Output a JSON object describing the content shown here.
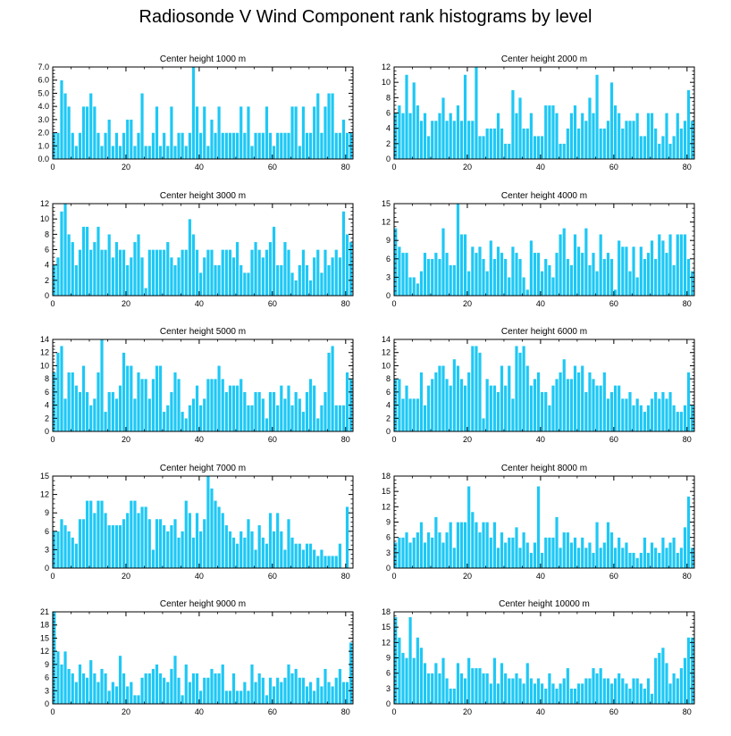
{
  "figure": {
    "title": "Radiosonde V Wind Component rank histograms by level",
    "bar_color": "#1ec8f5",
    "axis_color": "#000000"
  },
  "chart_data": [
    {
      "type": "bar",
      "title": "Center height 1000 m",
      "xlim": [
        0,
        82
      ],
      "xticks": [
        0,
        20,
        40,
        60,
        80
      ],
      "ylim": [
        0,
        7
      ],
      "yticks": [
        0,
        1,
        2,
        3,
        4,
        5,
        6,
        7
      ],
      "ytick_labels": [
        "0.0",
        "1.0",
        "2.0",
        "3.0",
        "4.0",
        "5.0",
        "6.0",
        "7.0"
      ],
      "values": [
        2,
        2,
        6,
        5,
        4,
        2,
        1,
        2,
        4,
        4,
        5,
        4,
        2,
        1,
        2,
        3,
        1,
        2,
        1,
        2,
        3,
        3,
        1,
        2,
        5,
        1,
        1,
        2,
        4,
        1,
        2,
        1,
        4,
        1,
        2,
        2,
        1,
        2,
        7,
        4,
        2,
        4,
        1,
        3,
        2,
        4,
        2,
        2,
        2,
        2,
        2,
        4,
        2,
        4,
        1,
        2,
        2,
        2,
        4,
        2,
        1,
        2,
        2,
        2,
        2,
        4,
        4,
        1,
        4,
        2,
        2,
        4,
        5,
        2,
        4,
        5,
        5,
        2,
        2,
        3,
        2,
        2
      ]
    },
    {
      "type": "bar",
      "title": "Center height 2000 m",
      "xlim": [
        0,
        82
      ],
      "xticks": [
        0,
        20,
        40,
        60,
        80
      ],
      "ylim": [
        0,
        12
      ],
      "yticks": [
        0,
        2,
        4,
        6,
        8,
        10,
        12
      ],
      "ytick_labels": [
        "0",
        "2",
        "4",
        "6",
        "8",
        "10",
        "12"
      ],
      "values": [
        6,
        7,
        6,
        11,
        6,
        10,
        7,
        5,
        6,
        3,
        5,
        5,
        6,
        8,
        5,
        6,
        5,
        7,
        5,
        11,
        5,
        5,
        12,
        3,
        3,
        4,
        4,
        4,
        6,
        4,
        2,
        2,
        9,
        6,
        8,
        4,
        4,
        6,
        3,
        3,
        3,
        7,
        7,
        7,
        6,
        2,
        2,
        4,
        6,
        7,
        4,
        6,
        5,
        8,
        6,
        11,
        4,
        4,
        5,
        10,
        7,
        6,
        4,
        5,
        5,
        5,
        6,
        3,
        3,
        6,
        6,
        4,
        2,
        3,
        6,
        2,
        3,
        6,
        4,
        5,
        9,
        5
      ]
    },
    {
      "type": "bar",
      "title": "Center height 3000 m",
      "xlim": [
        0,
        82
      ],
      "xticks": [
        0,
        20,
        40,
        60,
        80
      ],
      "ylim": [
        0,
        12
      ],
      "yticks": [
        0,
        2,
        4,
        6,
        8,
        10,
        12
      ],
      "ytick_labels": [
        "0",
        "2",
        "4",
        "6",
        "8",
        "10",
        "12"
      ],
      "values": [
        4,
        5,
        11,
        12,
        8,
        7,
        4,
        6,
        9,
        9,
        6,
        7,
        9,
        6,
        6,
        8,
        5,
        7,
        6,
        6,
        4,
        5,
        7,
        8,
        5,
        1,
        6,
        6,
        6,
        6,
        6,
        7,
        5,
        4,
        5,
        6,
        6,
        10,
        8,
        6,
        3,
        5,
        6,
        6,
        4,
        4,
        6,
        6,
        6,
        5,
        7,
        4,
        3,
        3,
        6,
        7,
        6,
        5,
        6,
        7,
        9,
        4,
        4,
        7,
        6,
        3,
        2,
        4,
        6,
        4,
        2,
        5,
        6,
        3,
        6,
        4,
        5,
        6,
        5,
        11,
        8,
        7
      ]
    },
    {
      "type": "bar",
      "title": "Center height 4000 m",
      "xlim": [
        0,
        82
      ],
      "xticks": [
        0,
        20,
        40,
        60,
        80
      ],
      "ylim": [
        0,
        15
      ],
      "yticks": [
        0,
        3,
        6,
        9,
        12,
        15
      ],
      "ytick_labels": [
        "0",
        "3",
        "6",
        "9",
        "12",
        "15"
      ],
      "values": [
        11,
        8,
        7,
        7,
        3,
        3,
        2,
        4,
        7,
        6,
        6,
        7,
        6,
        11,
        7,
        5,
        5,
        15,
        10,
        10,
        4,
        8,
        7,
        8,
        6,
        4,
        9,
        6,
        8,
        7,
        6,
        3,
        8,
        7,
        6,
        3,
        1,
        9,
        7,
        7,
        4,
        6,
        5,
        3,
        7,
        10,
        11,
        6,
        5,
        10,
        8,
        7,
        11,
        5,
        7,
        4,
        10,
        6,
        7,
        6,
        1,
        9,
        8,
        8,
        4,
        8,
        3,
        8,
        6,
        7,
        9,
        6,
        10,
        9,
        7,
        10,
        5,
        10,
        10,
        10,
        6,
        4
      ]
    },
    {
      "type": "bar",
      "title": "Center height 5000 m",
      "xlim": [
        0,
        82
      ],
      "xticks": [
        0,
        20,
        40,
        60,
        80
      ],
      "ylim": [
        0,
        14
      ],
      "yticks": [
        0,
        2,
        4,
        6,
        8,
        10,
        12,
        14
      ],
      "ytick_labels": [
        "0",
        "2",
        "4",
        "6",
        "8",
        "10",
        "12",
        "14"
      ],
      "values": [
        9,
        12,
        13,
        5,
        9,
        9,
        7,
        6,
        10,
        6,
        4,
        5,
        9,
        14,
        3,
        6,
        6,
        5,
        7,
        12,
        10,
        10,
        5,
        9,
        8,
        8,
        5,
        8,
        10,
        10,
        3,
        4,
        6,
        9,
        8,
        3,
        2,
        4,
        5,
        7,
        4,
        5,
        8,
        8,
        8,
        10,
        8,
        6,
        7,
        7,
        7,
        8,
        6,
        4,
        4,
        6,
        6,
        5,
        2,
        6,
        6,
        4,
        7,
        5,
        7,
        4,
        6,
        5,
        3,
        6,
        8,
        7,
        2,
        4,
        6,
        12,
        13,
        4,
        4,
        4,
        9,
        8
      ]
    },
    {
      "type": "bar",
      "title": "Center height 6000 m",
      "xlim": [
        0,
        82
      ],
      "xticks": [
        0,
        20,
        40,
        60,
        80
      ],
      "ylim": [
        0,
        14
      ],
      "yticks": [
        0,
        2,
        4,
        6,
        8,
        10,
        12,
        14
      ],
      "ytick_labels": [
        "0",
        "2",
        "4",
        "6",
        "8",
        "10",
        "12",
        "14"
      ],
      "values": [
        8,
        8,
        5,
        7,
        5,
        5,
        5,
        9,
        4,
        7,
        8,
        9,
        10,
        10,
        8,
        7,
        11,
        10,
        8,
        7,
        9,
        13,
        13,
        12,
        2,
        8,
        7,
        7,
        6,
        10,
        7,
        10,
        5,
        13,
        12,
        13,
        10,
        7,
        8,
        9,
        6,
        6,
        4,
        7,
        8,
        9,
        11,
        8,
        8,
        10,
        9,
        10,
        6,
        9,
        8,
        7,
        7,
        9,
        5,
        6,
        7,
        7,
        5,
        5,
        6,
        4,
        5,
        4,
        3,
        4,
        5,
        6,
        5,
        6,
        5,
        6,
        4,
        3,
        3,
        4,
        9,
        4
      ]
    },
    {
      "type": "bar",
      "title": "Center height 7000 m",
      "xlim": [
        0,
        82
      ],
      "xticks": [
        0,
        20,
        40,
        60,
        80
      ],
      "ylim": [
        0,
        15
      ],
      "yticks": [
        0,
        3,
        6,
        9,
        12,
        15
      ],
      "ytick_labels": [
        "0",
        "3",
        "6",
        "9",
        "12",
        "15"
      ],
      "values": [
        6,
        6,
        8,
        7,
        6,
        5,
        4,
        8,
        8,
        11,
        11,
        9,
        11,
        11,
        9,
        7,
        7,
        7,
        7,
        8,
        9,
        11,
        11,
        9,
        10,
        10,
        8,
        3,
        8,
        8,
        7,
        6,
        7,
        8,
        5,
        6,
        11,
        9,
        5,
        9,
        6,
        8,
        15,
        13,
        11,
        10,
        9,
        7,
        6,
        5,
        4,
        6,
        5,
        8,
        6,
        3,
        7,
        5,
        4,
        9,
        6,
        9,
        6,
        3,
        8,
        5,
        4,
        4,
        3,
        4,
        4,
        3,
        2,
        3,
        2,
        2,
        2,
        2,
        4,
        0,
        10,
        0
      ]
    },
    {
      "type": "bar",
      "title": "Center height 8000 m",
      "xlim": [
        0,
        82
      ],
      "xticks": [
        0,
        20,
        40,
        60,
        80
      ],
      "ylim": [
        0,
        18
      ],
      "yticks": [
        0,
        3,
        6,
        9,
        12,
        15,
        18
      ],
      "ytick_labels": [
        "0",
        "3",
        "6",
        "9",
        "12",
        "15",
        "18"
      ],
      "values": [
        5,
        6,
        6,
        7,
        5,
        6,
        7,
        9,
        5,
        7,
        6,
        10,
        7,
        5,
        7,
        9,
        4,
        9,
        9,
        9,
        16,
        11,
        9,
        7,
        9,
        9,
        6,
        9,
        4,
        7,
        5,
        6,
        6,
        8,
        4,
        7,
        5,
        3,
        5,
        16,
        3,
        6,
        6,
        6,
        10,
        4,
        7,
        7,
        5,
        6,
        4,
        6,
        4,
        5,
        3,
        9,
        4,
        5,
        9,
        7,
        4,
        6,
        4,
        5,
        3,
        3,
        2,
        3,
        6,
        3,
        5,
        4,
        3,
        6,
        4,
        5,
        6,
        3,
        4,
        8,
        14,
        4
      ]
    },
    {
      "type": "bar",
      "title": "Center height 9000 m",
      "xlim": [
        0,
        82
      ],
      "xticks": [
        0,
        20,
        40,
        60,
        80
      ],
      "ylim": [
        0,
        21
      ],
      "yticks": [
        0,
        3,
        6,
        9,
        12,
        15,
        18,
        21
      ],
      "ytick_labels": [
        "0",
        "3",
        "6",
        "9",
        "12",
        "15",
        "18",
        "21"
      ],
      "values": [
        21,
        12,
        9,
        12,
        8,
        7,
        5,
        9,
        7,
        6,
        10,
        7,
        5,
        8,
        7,
        3,
        5,
        4,
        11,
        7,
        4,
        5,
        2,
        2,
        6,
        7,
        7,
        8,
        9,
        7,
        6,
        5,
        8,
        11,
        6,
        2,
        9,
        5,
        7,
        7,
        3,
        6,
        6,
        8,
        7,
        7,
        9,
        3,
        3,
        7,
        3,
        3,
        5,
        3,
        9,
        5,
        7,
        6,
        2,
        6,
        4,
        6,
        5,
        6,
        9,
        7,
        8,
        6,
        6,
        4,
        5,
        3,
        6,
        4,
        8,
        5,
        4,
        6,
        8,
        5,
        5,
        14
      ]
    },
    {
      "type": "bar",
      "title": "Center height 10000 m",
      "xlim": [
        0,
        82
      ],
      "xticks": [
        0,
        20,
        40,
        60,
        80
      ],
      "ylim": [
        0,
        18
      ],
      "yticks": [
        0,
        3,
        6,
        9,
        12,
        15,
        18
      ],
      "ytick_labels": [
        "0",
        "3",
        "6",
        "9",
        "12",
        "15",
        "18"
      ],
      "values": [
        17,
        13,
        10,
        9,
        17,
        9,
        13,
        11,
        8,
        6,
        6,
        8,
        6,
        9,
        5,
        3,
        3,
        8,
        6,
        5,
        9,
        7,
        7,
        7,
        6,
        6,
        4,
        9,
        4,
        8,
        6,
        5,
        5,
        6,
        5,
        4,
        8,
        5,
        4,
        5,
        4,
        3,
        6,
        4,
        3,
        4,
        5,
        7,
        3,
        3,
        4,
        4,
        5,
        5,
        7,
        6,
        7,
        5,
        5,
        4,
        5,
        6,
        5,
        4,
        3,
        5,
        5,
        4,
        3,
        5,
        2,
        9,
        10,
        11,
        8,
        4,
        6,
        5,
        7,
        9,
        13,
        13
      ]
    }
  ]
}
